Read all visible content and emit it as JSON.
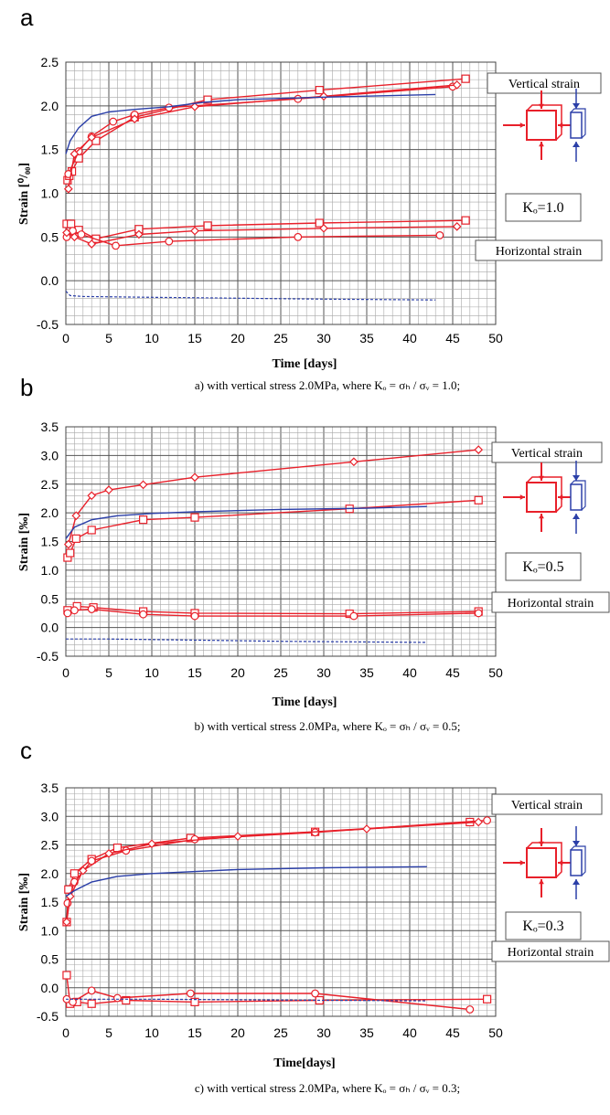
{
  "chart_data": [
    {
      "type": "line",
      "panel": "a",
      "xlabel": "Time [days]",
      "ylabel": "Strain [⁰/₀₀]",
      "caption": "a) with vertical stress 2.0MPa, where Kₒ = σₕ / σᵥ = 1.0;",
      "xlim": [
        0,
        50
      ],
      "ylim": [
        -0.5,
        2.5
      ],
      "xticks": [
        0,
        5,
        10,
        15,
        20,
        25,
        30,
        35,
        40,
        45,
        50
      ],
      "yticks": [
        -0.5,
        0.0,
        0.5,
        1.0,
        1.5,
        2.0,
        2.5
      ],
      "ytick_labels": [
        "-0.5",
        "0.0",
        "0.5",
        "1.0",
        "1.5",
        "2.0",
        "2.5"
      ],
      "grid": true,
      "labels": {
        "vertical": "Vertical strain",
        "horizontal": "Horizontal strain",
        "ko": "Kₒ=1.0"
      },
      "series": [
        {
          "color": "#e8202a",
          "marker": "square",
          "points": [
            [
              0.2,
              1.15
            ],
            [
              0.4,
              1.2
            ],
            [
              0.7,
              1.25
            ],
            [
              1.5,
              1.4
            ],
            [
              3.5,
              1.6
            ],
            [
              8,
              1.87
            ],
            [
              16.5,
              2.07
            ],
            [
              29.5,
              2.18
            ],
            [
              46.5,
              2.31
            ]
          ]
        },
        {
          "color": "#e8202a",
          "marker": "circle",
          "points": [
            [
              0.3,
              1.22
            ],
            [
              1.5,
              1.48
            ],
            [
              3,
              1.65
            ],
            [
              5.5,
              1.82
            ],
            [
              8,
              1.9
            ],
            [
              12,
              1.98
            ],
            [
              27,
              2.08
            ],
            [
              45,
              2.22
            ]
          ]
        },
        {
          "color": "#e8202a",
          "marker": "diamond",
          "points": [
            [
              0.3,
              1.05
            ],
            [
              1,
              1.45
            ],
            [
              3,
              1.64
            ],
            [
              8,
              1.85
            ],
            [
              15,
              1.99
            ],
            [
              30,
              2.11
            ],
            [
              45.5,
              2.24
            ]
          ]
        },
        {
          "color": "#2b3fa8",
          "marker": "none",
          "points": [
            [
              0,
              1.45
            ],
            [
              0.5,
              1.6
            ],
            [
              1.5,
              1.75
            ],
            [
              3,
              1.88
            ],
            [
              5,
              1.93
            ],
            [
              8,
              1.96
            ],
            [
              12,
              1.99
            ],
            [
              16,
              2.04
            ],
            [
              20,
              2.07
            ],
            [
              30,
              2.1
            ],
            [
              43,
              2.13
            ]
          ]
        },
        {
          "color": "#e8202a",
          "marker": "square",
          "points": [
            [
              0.1,
              0.65
            ],
            [
              0.6,
              0.65
            ],
            [
              1.5,
              0.58
            ],
            [
              3.5,
              0.48
            ],
            [
              8.5,
              0.59
            ],
            [
              16.5,
              0.63
            ],
            [
              29.5,
              0.66
            ],
            [
              46.5,
              0.69
            ]
          ]
        },
        {
          "color": "#e8202a",
          "marker": "circle",
          "points": [
            [
              0.1,
              0.5
            ],
            [
              0.8,
              0.57
            ],
            [
              1.8,
              0.53
            ],
            [
              5.8,
              0.4
            ],
            [
              12,
              0.45
            ],
            [
              27,
              0.5
            ],
            [
              43.5,
              0.52
            ]
          ]
        },
        {
          "color": "#e8202a",
          "marker": "diamond",
          "points": [
            [
              0.1,
              0.55
            ],
            [
              1,
              0.5
            ],
            [
              3,
              0.42
            ],
            [
              8.5,
              0.53
            ],
            [
              15,
              0.57
            ],
            [
              30,
              0.6
            ],
            [
              45.5,
              0.62
            ]
          ]
        },
        {
          "color": "#2b3fa8",
          "marker": "none",
          "dash": true,
          "points": [
            [
              0,
              -0.12
            ],
            [
              0.5,
              -0.17
            ],
            [
              2,
              -0.18
            ],
            [
              10,
              -0.19
            ],
            [
              20,
              -0.2
            ],
            [
              30,
              -0.21
            ],
            [
              43,
              -0.22
            ]
          ]
        }
      ]
    },
    {
      "type": "line",
      "panel": "b",
      "xlabel": "Time  [days]",
      "ylabel": "Strain [‰]",
      "caption": "b) with vertical stress 2.0MPa, where Kₒ = σₕ / σᵥ = 0.5;",
      "xlim": [
        0,
        50
      ],
      "ylim": [
        -0.5,
        3.5
      ],
      "xticks": [
        0,
        5,
        10,
        15,
        20,
        25,
        30,
        35,
        40,
        45,
        50
      ],
      "yticks": [
        -0.5,
        0.0,
        0.5,
        1.0,
        1.5,
        2.0,
        2.5,
        3.0,
        3.5
      ],
      "ytick_labels": [
        "-0.5",
        "0.0",
        "0.5",
        "1.0",
        "1.5",
        "2.0",
        "2.5",
        "3.0",
        "3.5"
      ],
      "grid": true,
      "labels": {
        "vertical": "Vertical strain",
        "horizontal": "Horizontal strain",
        "ko": "Kₒ=0.5"
      },
      "series": [
        {
          "color": "#e8202a",
          "marker": "diamond",
          "points": [
            [
              0.3,
              1.45
            ],
            [
              1.2,
              1.95
            ],
            [
              3,
              2.3
            ],
            [
              5,
              2.4
            ],
            [
              9,
              2.49
            ],
            [
              15,
              2.62
            ],
            [
              33.5,
              2.89
            ],
            [
              48,
              3.1
            ]
          ]
        },
        {
          "color": "#e8202a",
          "marker": "square",
          "points": [
            [
              0.2,
              1.22
            ],
            [
              0.5,
              1.3
            ],
            [
              1.2,
              1.55
            ],
            [
              3,
              1.7
            ],
            [
              9,
              1.88
            ],
            [
              15,
              1.92
            ],
            [
              33,
              2.07
            ],
            [
              48,
              2.22
            ]
          ]
        },
        {
          "color": "#2b3fa8",
          "marker": "none",
          "points": [
            [
              0,
              1.55
            ],
            [
              1,
              1.75
            ],
            [
              3,
              1.88
            ],
            [
              6,
              1.95
            ],
            [
              10,
              1.99
            ],
            [
              15,
              2.02
            ],
            [
              25,
              2.06
            ],
            [
              35,
              2.08
            ],
            [
              42,
              2.11
            ]
          ]
        },
        {
          "color": "#e8202a",
          "marker": "square",
          "points": [
            [
              0.2,
              0.3
            ],
            [
              1.3,
              0.37
            ],
            [
              3.2,
              0.35
            ],
            [
              9,
              0.28
            ],
            [
              15,
              0.25
            ],
            [
              33,
              0.24
            ],
            [
              48,
              0.28
            ]
          ]
        },
        {
          "color": "#e8202a",
          "marker": "circle",
          "points": [
            [
              0.2,
              0.25
            ],
            [
              1,
              0.3
            ],
            [
              3,
              0.32
            ],
            [
              9,
              0.23
            ],
            [
              15,
              0.2
            ],
            [
              33.5,
              0.2
            ],
            [
              48,
              0.25
            ]
          ]
        },
        {
          "color": "#2b3fa8",
          "marker": "none",
          "dash": true,
          "points": [
            [
              0,
              -0.2
            ],
            [
              5,
              -0.2
            ],
            [
              15,
              -0.22
            ],
            [
              25,
              -0.24
            ],
            [
              42,
              -0.26
            ]
          ]
        }
      ]
    },
    {
      "type": "line",
      "panel": "c",
      "xlabel": "Time[days]",
      "ylabel": "Strain [‰]",
      "caption": "c) with vertical stress 2.0MPa, where Kₒ = σₕ / σᵥ = 0.3;",
      "xlim": [
        0,
        50
      ],
      "ylim": [
        -0.5,
        3.5
      ],
      "xticks": [
        0,
        5,
        10,
        15,
        20,
        25,
        30,
        35,
        40,
        45,
        50
      ],
      "yticks": [
        -0.5,
        0.0,
        0.5,
        1.0,
        1.5,
        2.0,
        2.5,
        3.0,
        3.5
      ],
      "ytick_labels": [
        "-0.5",
        "0.0",
        "0.5",
        "1.0",
        "1.5",
        "2.0",
        "2.5",
        "3.0",
        "3.5"
      ],
      "grid": true,
      "labels": {
        "vertical": "Vertical strain",
        "horizontal": "Horizontal strain",
        "ko": "Kₒ=0.3"
      },
      "series": [
        {
          "color": "#e8202a",
          "marker": "square",
          "points": [
            [
              0.1,
              1.15
            ],
            [
              0.3,
              1.72
            ],
            [
              1,
              2.0
            ],
            [
              3,
              2.25
            ],
            [
              6,
              2.45
            ],
            [
              14.5,
              2.62
            ],
            [
              29,
              2.73
            ],
            [
              47,
              2.9
            ]
          ]
        },
        {
          "color": "#e8202a",
          "marker": "circle",
          "points": [
            [
              0.2,
              1.48
            ],
            [
              1,
              1.85
            ],
            [
              3,
              2.22
            ],
            [
              7,
              2.4
            ],
            [
              15,
              2.6
            ],
            [
              29,
              2.72
            ],
            [
              49,
              2.93
            ]
          ]
        },
        {
          "color": "#e8202a",
          "marker": "diamond",
          "points": [
            [
              0.1,
              1.15
            ],
            [
              0.5,
              1.6
            ],
            [
              2,
              2.05
            ],
            [
              5,
              2.35
            ],
            [
              10,
              2.52
            ],
            [
              20,
              2.65
            ],
            [
              35,
              2.78
            ],
            [
              48,
              2.9
            ]
          ]
        },
        {
          "color": "#2b3fa8",
          "marker": "none",
          "points": [
            [
              0,
              1.6
            ],
            [
              1,
              1.7
            ],
            [
              3,
              1.85
            ],
            [
              6,
              1.95
            ],
            [
              10,
              2.0
            ],
            [
              20,
              2.07
            ],
            [
              30,
              2.1
            ],
            [
              42,
              2.12
            ]
          ]
        },
        {
          "color": "#e8202a",
          "marker": "square",
          "points": [
            [
              0.1,
              0.22
            ],
            [
              0.5,
              -0.28
            ],
            [
              1.3,
              -0.25
            ],
            [
              3,
              -0.28
            ],
            [
              7,
              -0.22
            ],
            [
              15,
              -0.25
            ],
            [
              29.5,
              -0.22
            ],
            [
              49,
              -0.2
            ]
          ]
        },
        {
          "color": "#e8202a",
          "marker": "circle",
          "points": [
            [
              0.1,
              -0.2
            ],
            [
              0.8,
              -0.25
            ],
            [
              3,
              -0.05
            ],
            [
              6,
              -0.18
            ],
            [
              14.5,
              -0.1
            ],
            [
              29,
              -0.1
            ],
            [
              47,
              -0.38
            ]
          ]
        },
        {
          "color": "#2b3fa8",
          "marker": "none",
          "dash": true,
          "points": [
            [
              0,
              -0.2
            ],
            [
              10,
              -0.2
            ],
            [
              20,
              -0.21
            ],
            [
              30,
              -0.22
            ],
            [
              42,
              -0.23
            ]
          ]
        }
      ]
    }
  ]
}
